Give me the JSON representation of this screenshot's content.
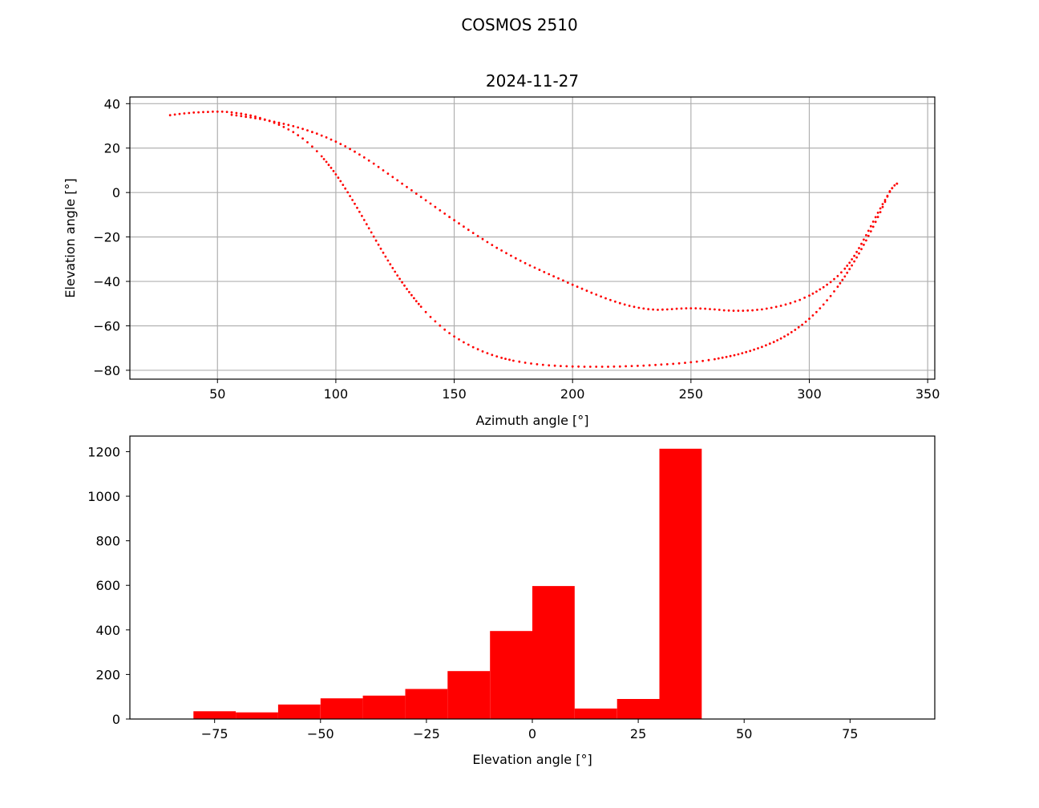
{
  "figure": {
    "title": "COSMOS 2510"
  },
  "chart_data": [
    {
      "type": "scatter",
      "title": "2024-11-27",
      "xlabel": "Azimuth angle [°]",
      "ylabel": "Elevation angle [°]",
      "xlim": [
        13,
        353
      ],
      "ylim": [
        -84,
        43
      ],
      "xticks": [
        50,
        100,
        150,
        200,
        250,
        300,
        350
      ],
      "yticks": [
        -80,
        -60,
        -40,
        -20,
        0,
        20,
        40
      ],
      "xtick_labels": [
        "50",
        "100",
        "150",
        "200",
        "250",
        "300",
        "350"
      ],
      "ytick_labels": [
        "−80",
        "−60",
        "−40",
        "−20",
        "0",
        "20",
        "40"
      ],
      "grid": true,
      "color": "#ff0000",
      "series": [
        {
          "points": [
            [
              30,
              34.8
            ],
            [
              32,
              35.1
            ],
            [
              34,
              35.4
            ],
            [
              36,
              35.6
            ],
            [
              38,
              35.8
            ],
            [
              40,
              36.0
            ],
            [
              42,
              36.1
            ],
            [
              44,
              36.2
            ],
            [
              46,
              36.3
            ],
            [
              48,
              36.4
            ],
            [
              50,
              36.4
            ],
            [
              52,
              36.4
            ],
            [
              54,
              36.3
            ],
            [
              56,
              36.1
            ],
            [
              58,
              35.8
            ],
            [
              60,
              35.5
            ],
            [
              62,
              35.1
            ],
            [
              64,
              34.7
            ],
            [
              66,
              34.2
            ],
            [
              68,
              33.6
            ],
            [
              70,
              32.9
            ],
            [
              72,
              32.2
            ],
            [
              74,
              31.4
            ],
            [
              76,
              30.5
            ],
            [
              78,
              29.5
            ],
            [
              80,
              28.4
            ],
            [
              82,
              27.2
            ],
            [
              84,
              25.8
            ],
            [
              86,
              24.3
            ],
            [
              88,
              22.6
            ],
            [
              90,
              20.7
            ],
            [
              92,
              18.6
            ],
            [
              94,
              16.3
            ],
            [
              96,
              13.8
            ],
            [
              98,
              11.1
            ],
            [
              100,
              8.2
            ],
            [
              102,
              5.1
            ],
            [
              104,
              1.8
            ],
            [
              106,
              -1.6
            ],
            [
              108,
              -5.1
            ],
            [
              110,
              -8.7
            ],
            [
              112,
              -12.4
            ],
            [
              114,
              -16.1
            ],
            [
              116,
              -19.8
            ],
            [
              118,
              -23.5
            ],
            [
              120,
              -27.1
            ],
            [
              122,
              -30.6
            ],
            [
              124,
              -34.0
            ],
            [
              126,
              -37.3
            ],
            [
              128,
              -40.4
            ],
            [
              130,
              -43.4
            ],
            [
              132,
              -46.2
            ],
            [
              134,
              -48.9
            ],
            [
              136,
              -51.4
            ],
            [
              138,
              -53.8
            ],
            [
              140,
              -56.0
            ],
            [
              142,
              -58.0
            ],
            [
              144,
              -59.9
            ],
            [
              146,
              -61.7
            ],
            [
              148,
              -63.3
            ],
            [
              150,
              -64.8
            ],
            [
              154,
              -67.4
            ],
            [
              158,
              -69.6
            ],
            [
              162,
              -71.5
            ],
            [
              166,
              -73.1
            ],
            [
              170,
              -74.4
            ],
            [
              175,
              -75.7
            ],
            [
              180,
              -76.6
            ],
            [
              185,
              -77.3
            ],
            [
              190,
              -77.8
            ],
            [
              195,
              -78.1
            ],
            [
              200,
              -78.3
            ],
            [
              205,
              -78.4
            ],
            [
              210,
              -78.4
            ],
            [
              215,
              -78.4
            ],
            [
              220,
              -78.3
            ],
            [
              225,
              -78.1
            ],
            [
              230,
              -77.9
            ],
            [
              235,
              -77.6
            ],
            [
              240,
              -77.3
            ],
            [
              245,
              -76.9
            ],
            [
              250,
              -76.4
            ],
            [
              255,
              -75.8
            ],
            [
              260,
              -75.0
            ],
            [
              265,
              -74.0
            ],
            [
              270,
              -72.8
            ],
            [
              275,
              -71.3
            ],
            [
              280,
              -69.5
            ],
            [
              285,
              -67.3
            ],
            [
              288,
              -65.7
            ],
            [
              291,
              -63.9
            ],
            [
              294,
              -61.8
            ],
            [
              297,
              -59.5
            ],
            [
              300,
              -56.8
            ],
            [
              303,
              -53.8
            ],
            [
              306,
              -50.4
            ],
            [
              309,
              -46.6
            ],
            [
              312,
              -42.4
            ],
            [
              315,
              -37.8
            ],
            [
              318,
              -32.8
            ],
            [
              321,
              -27.4
            ],
            [
              324,
              -21.6
            ],
            [
              327,
              -15.4
            ],
            [
              330,
              -8.8
            ],
            [
              332,
              -4.2
            ],
            [
              334,
              0.6
            ],
            [
              336,
              3.2
            ],
            [
              337,
              4.0
            ],
            [
              337,
              4.0
            ],
            [
              335,
              2.0
            ],
            [
              333,
              -1.5
            ],
            [
              331,
              -5.2
            ],
            [
              329,
              -9.1
            ],
            [
              327,
              -13.1
            ],
            [
              325,
              -17.2
            ],
            [
              323,
              -21.2
            ],
            [
              321,
              -25.0
            ],
            [
              319,
              -28.5
            ],
            [
              317,
              -31.6
            ],
            [
              315,
              -34.3
            ],
            [
              312,
              -37.6
            ],
            [
              309,
              -40.3
            ],
            [
              306,
              -42.6
            ],
            [
              303,
              -44.6
            ],
            [
              300,
              -46.4
            ],
            [
              296,
              -48.3
            ],
            [
              292,
              -49.8
            ],
            [
              288,
              -51.0
            ],
            [
              284,
              -51.9
            ],
            [
              280,
              -52.6
            ],
            [
              276,
              -53.0
            ],
            [
              272,
              -53.2
            ],
            [
              268,
              -53.2
            ],
            [
              264,
              -53.0
            ],
            [
              260,
              -52.6
            ],
            [
              256,
              -52.3
            ],
            [
              252,
              -52.1
            ],
            [
              248,
              -52.1
            ],
            [
              244,
              -52.3
            ],
            [
              240,
              -52.6
            ],
            [
              236,
              -52.8
            ],
            [
              232,
              -52.5
            ],
            [
              228,
              -51.9
            ],
            [
              224,
              -51.0
            ],
            [
              220,
              -49.8
            ],
            [
              216,
              -48.4
            ],
            [
              212,
              -46.8
            ],
            [
              208,
              -45.1
            ],
            [
              204,
              -43.3
            ],
            [
              200,
              -41.5
            ],
            [
              196,
              -39.6
            ],
            [
              192,
              -37.7
            ],
            [
              188,
              -35.8
            ],
            [
              184,
              -33.8
            ],
            [
              180,
              -31.8
            ],
            [
              176,
              -29.6
            ],
            [
              172,
              -27.3
            ],
            [
              168,
              -24.9
            ],
            [
              164,
              -22.3
            ],
            [
              160,
              -19.6
            ],
            [
              156,
              -16.8
            ],
            [
              152,
              -13.9
            ],
            [
              148,
              -11.0
            ],
            [
              144,
              -8.0
            ],
            [
              140,
              -5.0
            ],
            [
              136,
              -2.0
            ],
            [
              132,
              1.0
            ],
            [
              128,
              4.0
            ],
            [
              124,
              7.0
            ],
            [
              120,
              10.0
            ],
            [
              116,
              13.0
            ],
            [
              112,
              15.8
            ],
            [
              108,
              18.4
            ],
            [
              104,
              20.8
            ],
            [
              100,
              22.9
            ],
            [
              96,
              24.8
            ],
            [
              92,
              26.5
            ],
            [
              88,
              28.0
            ],
            [
              84,
              29.3
            ],
            [
              80,
              30.4
            ],
            [
              76,
              31.4
            ],
            [
              72,
              32.3
            ],
            [
              68,
              33.1
            ],
            [
              64,
              33.8
            ],
            [
              60,
              34.4
            ],
            [
              56,
              35.0
            ]
          ]
        }
      ]
    },
    {
      "type": "bar",
      "title": "",
      "xlabel": "Elevation angle [°]",
      "ylabel": "",
      "xlim": [
        -95,
        95
      ],
      "ylim": [
        0,
        1270
      ],
      "xticks": [
        -75,
        -50,
        -25,
        0,
        25,
        50,
        75
      ],
      "yticks": [
        0,
        200,
        400,
        600,
        800,
        1000,
        1200
      ],
      "xtick_labels": [
        "−75",
        "−50",
        "−25",
        "0",
        "25",
        "50",
        "75"
      ],
      "ytick_labels": [
        "0",
        "200",
        "400",
        "600",
        "800",
        "1000",
        "1200"
      ],
      "grid": false,
      "color": "#ff0000",
      "bin_edges": [
        -80,
        -70,
        -60,
        -50,
        -40,
        -30,
        -20,
        -10,
        0,
        10,
        20,
        30,
        40
      ],
      "values": [
        35,
        30,
        65,
        93,
        105,
        135,
        215,
        395,
        597,
        47,
        90,
        1213
      ]
    }
  ]
}
